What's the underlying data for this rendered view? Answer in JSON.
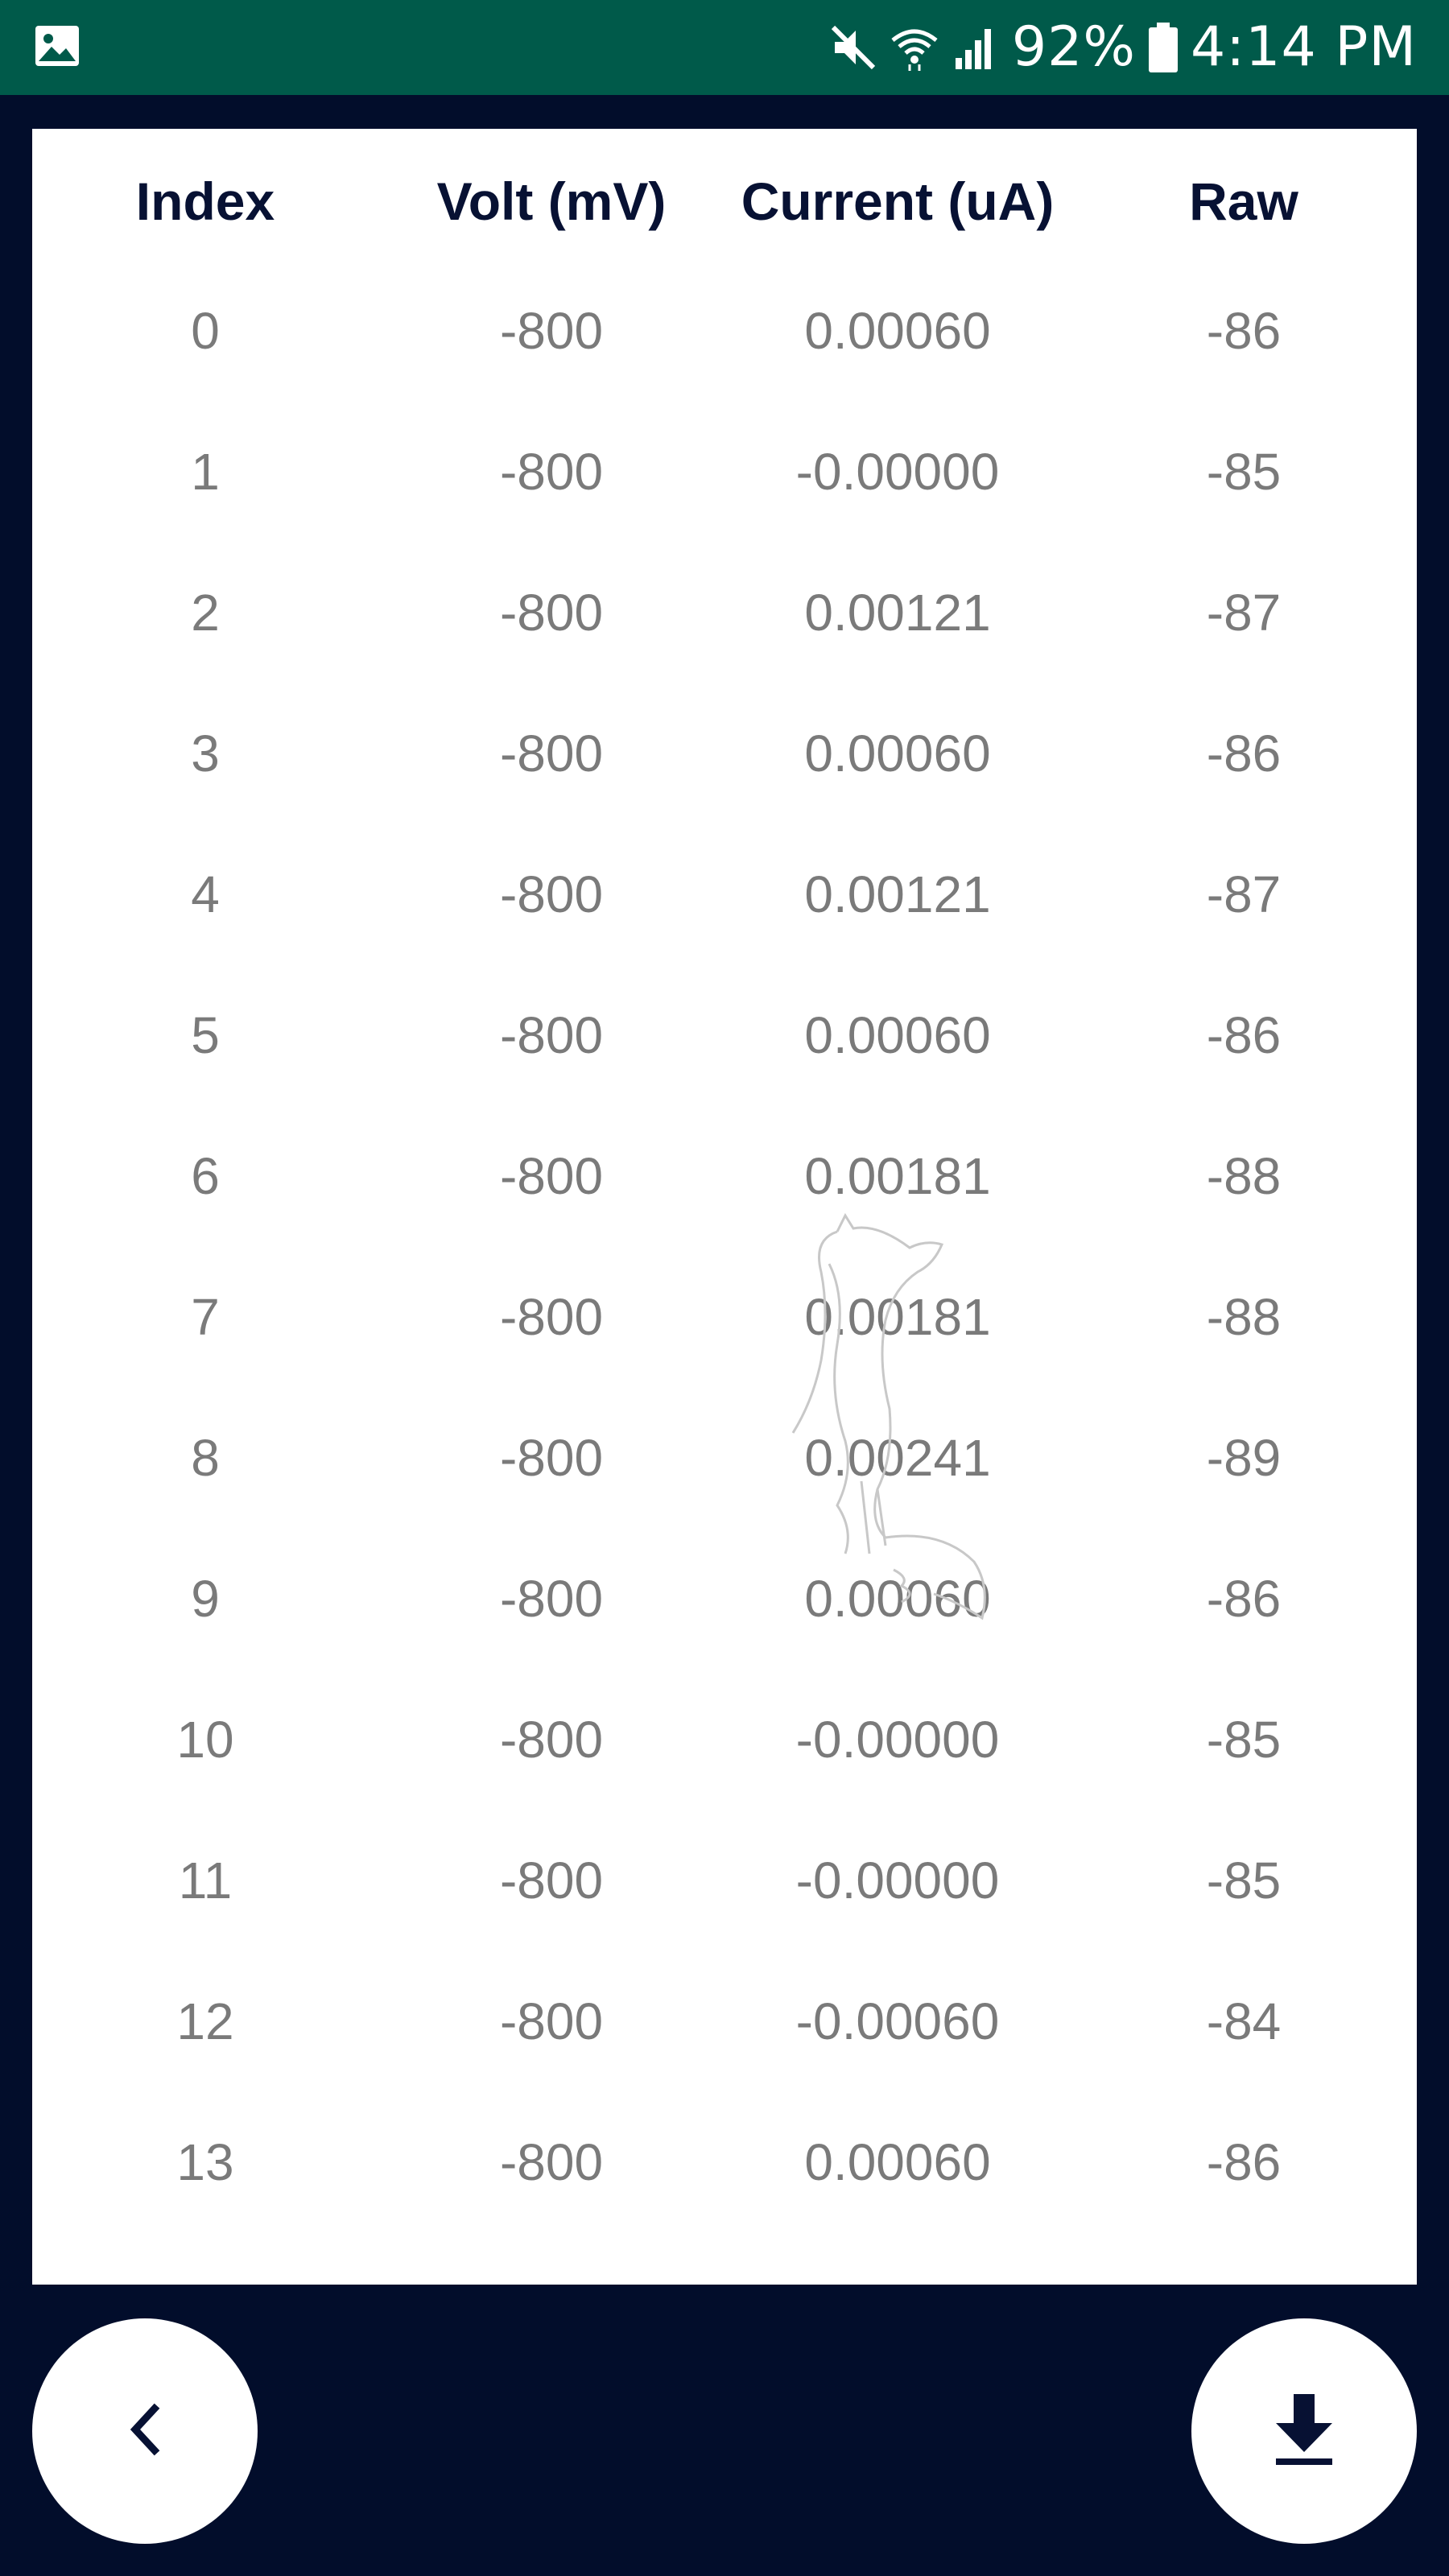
{
  "status_bar": {
    "battery": "92%",
    "time": "4:14 PM",
    "icons": [
      "gallery-icon",
      "mute-icon",
      "wifi-icon",
      "signal-icon",
      "battery-icon"
    ]
  },
  "table": {
    "headers": [
      "Index",
      "Volt (mV)",
      "Current (uA)",
      "Raw"
    ],
    "rows": [
      [
        "0",
        "-800",
        "0.00060",
        "-86"
      ],
      [
        "1",
        "-800",
        "-0.00000",
        "-85"
      ],
      [
        "2",
        "-800",
        "0.00121",
        "-87"
      ],
      [
        "3",
        "-800",
        "0.00060",
        "-86"
      ],
      [
        "4",
        "-800",
        "0.00121",
        "-87"
      ],
      [
        "5",
        "-800",
        "0.00060",
        "-86"
      ],
      [
        "6",
        "-800",
        "0.00181",
        "-88"
      ],
      [
        "7",
        "-800",
        "0.00181",
        "-88"
      ],
      [
        "8",
        "-800",
        "0.00241",
        "-89"
      ],
      [
        "9",
        "-800",
        "0.00060",
        "-86"
      ],
      [
        "10",
        "-800",
        "-0.00000",
        "-85"
      ],
      [
        "11",
        "-800",
        "-0.00000",
        "-85"
      ],
      [
        "12",
        "-800",
        "-0.00060",
        "-84"
      ],
      [
        "13",
        "-800",
        "0.00060",
        "-86"
      ]
    ]
  },
  "buttons": {
    "back_icon": "chevron-left-icon",
    "download_icon": "download-icon"
  },
  "colors": {
    "status_bar": "#005a4a",
    "background": "#020d2b",
    "header_text": "#071133",
    "cell_text": "#7a7a7a"
  }
}
